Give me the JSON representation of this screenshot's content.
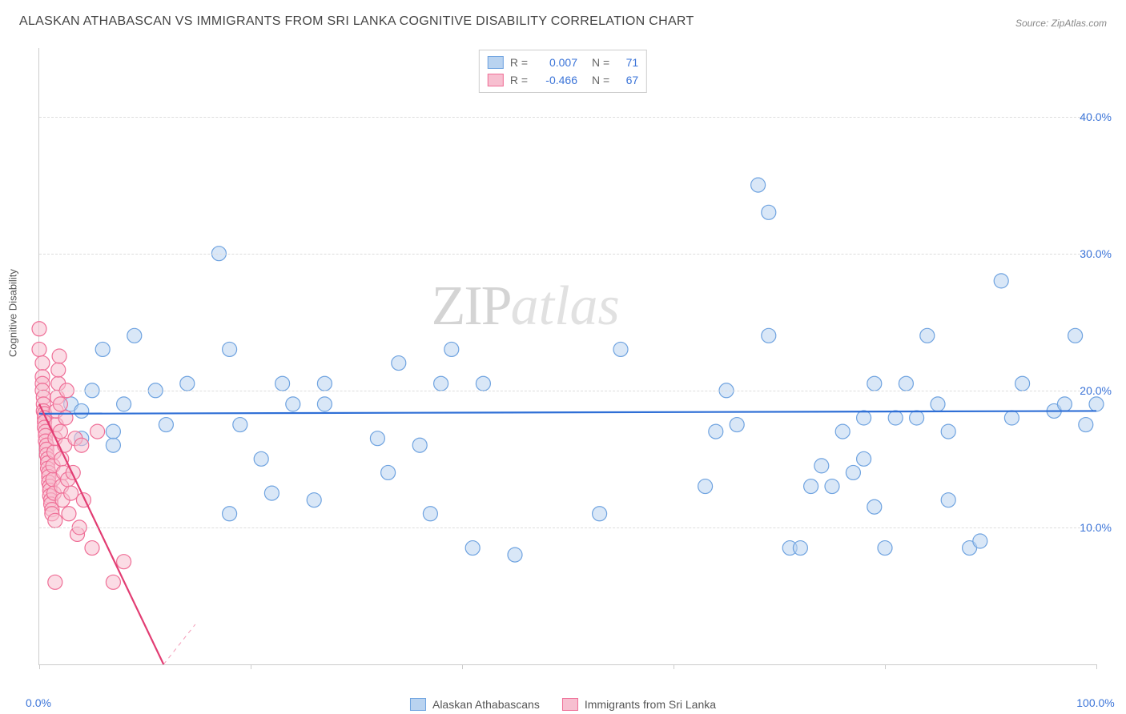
{
  "title": "ALASKAN ATHABASCAN VS IMMIGRANTS FROM SRI LANKA COGNITIVE DISABILITY CORRELATION CHART",
  "source": "Source: ZipAtlas.com",
  "y_axis_label": "Cognitive Disability",
  "watermark": {
    "part1": "ZIP",
    "part2": "atlas"
  },
  "chart": {
    "type": "scatter",
    "xlim": [
      0,
      100
    ],
    "ylim": [
      0,
      45
    ],
    "y_ticks": [
      10,
      20,
      30,
      40
    ],
    "y_tick_labels": [
      "10.0%",
      "20.0%",
      "30.0%",
      "40.0%"
    ],
    "x_ticks": [
      0,
      20,
      40,
      60,
      80,
      100
    ],
    "x_tick_labels_shown": {
      "0": "0.0%",
      "100": "100.0%"
    },
    "background_color": "#ffffff",
    "grid_color": "#dddddd",
    "axis_color": "#cccccc",
    "tick_label_color": "#3b74d8",
    "marker_radius": 9,
    "marker_stroke_width": 1.2,
    "series": [
      {
        "name": "Alaskan Athabascans",
        "fill": "#b9d3f0",
        "stroke": "#6fa3e0",
        "fill_opacity": 0.55,
        "regression": {
          "x1": 0,
          "y1": 18.3,
          "x2": 100,
          "y2": 18.5,
          "color": "#2f6fd6",
          "width": 2.2,
          "dash": "none"
        },
        "points": [
          [
            3,
            19
          ],
          [
            4,
            18.5
          ],
          [
            5,
            20
          ],
          [
            4,
            16.5
          ],
          [
            6,
            23
          ],
          [
            7,
            16
          ],
          [
            7,
            17
          ],
          [
            8,
            19
          ],
          [
            9,
            24
          ],
          [
            11,
            20
          ],
          [
            12,
            17.5
          ],
          [
            14,
            20.5
          ],
          [
            17,
            30
          ],
          [
            18,
            23
          ],
          [
            19,
            17.5
          ],
          [
            18,
            11
          ],
          [
            21,
            15
          ],
          [
            22,
            12.5
          ],
          [
            23,
            20.5
          ],
          [
            24,
            19
          ],
          [
            26,
            12
          ],
          [
            27,
            19
          ],
          [
            27,
            20.5
          ],
          [
            32,
            16.5
          ],
          [
            33,
            14
          ],
          [
            34,
            22
          ],
          [
            36,
            16
          ],
          [
            37,
            11
          ],
          [
            38,
            20.5
          ],
          [
            39,
            23
          ],
          [
            41,
            8.5
          ],
          [
            42,
            20.5
          ],
          [
            45,
            8
          ],
          [
            53,
            11
          ],
          [
            55,
            23
          ],
          [
            63,
            13
          ],
          [
            64,
            17
          ],
          [
            65,
            20
          ],
          [
            66,
            17.5
          ],
          [
            68,
            35
          ],
          [
            69,
            33
          ],
          [
            69,
            24
          ],
          [
            71,
            8.5
          ],
          [
            72,
            8.5
          ],
          [
            73,
            13
          ],
          [
            74,
            14.5
          ],
          [
            75,
            13
          ],
          [
            76,
            17
          ],
          [
            77,
            14
          ],
          [
            78,
            18
          ],
          [
            78,
            15
          ],
          [
            79,
            20.5
          ],
          [
            79,
            11.5
          ],
          [
            80,
            8.5
          ],
          [
            81,
            18
          ],
          [
            82,
            20.5
          ],
          [
            83,
            18
          ],
          [
            84,
            24
          ],
          [
            85,
            19
          ],
          [
            86,
            12
          ],
          [
            86,
            17
          ],
          [
            88,
            8.5
          ],
          [
            89,
            9
          ],
          [
            91,
            28
          ],
          [
            92,
            18
          ],
          [
            93,
            20.5
          ],
          [
            96,
            18.5
          ],
          [
            97,
            19
          ],
          [
            98,
            24
          ],
          [
            99,
            17.5
          ],
          [
            100,
            19
          ]
        ]
      },
      {
        "name": "Immigrants from Sri Lanka",
        "fill": "#f7bfd0",
        "stroke": "#ef6f97",
        "fill_opacity": 0.55,
        "regression": {
          "x1": 0,
          "y1": 19,
          "x2": 13,
          "y2": -2,
          "color": "#e23d73",
          "width": 2.2,
          "dash": "none",
          "dash_extension_to_x": 13
        },
        "points": [
          [
            0,
            24.5
          ],
          [
            0,
            23
          ],
          [
            0.3,
            22
          ],
          [
            0.3,
            21
          ],
          [
            0.3,
            20.5
          ],
          [
            0.3,
            20
          ],
          [
            0.4,
            19.5
          ],
          [
            0.4,
            19
          ],
          [
            0.4,
            18.5
          ],
          [
            0.5,
            18.3
          ],
          [
            0.5,
            18
          ],
          [
            0.5,
            17.7
          ],
          [
            0.5,
            17.3
          ],
          [
            0.6,
            17
          ],
          [
            0.6,
            16.7
          ],
          [
            0.6,
            16.3
          ],
          [
            0.7,
            16
          ],
          [
            0.7,
            15.7
          ],
          [
            0.7,
            15.3
          ],
          [
            0.8,
            15
          ],
          [
            0.8,
            14.7
          ],
          [
            0.8,
            14.3
          ],
          [
            0.9,
            14
          ],
          [
            0.9,
            13.7
          ],
          [
            0.9,
            13.3
          ],
          [
            1,
            13
          ],
          [
            1,
            12.7
          ],
          [
            1,
            12.3
          ],
          [
            1.1,
            12
          ],
          [
            1.1,
            11.7
          ],
          [
            1.2,
            11.3
          ],
          [
            1.2,
            11
          ],
          [
            1.3,
            13.5
          ],
          [
            1.3,
            14.5
          ],
          [
            1.4,
            12.5
          ],
          [
            1.4,
            15.5
          ],
          [
            1.5,
            16.5
          ],
          [
            1.5,
            10.5
          ],
          [
            1.6,
            17.5
          ],
          [
            1.6,
            18.5
          ],
          [
            1.7,
            19.5
          ],
          [
            1.8,
            20.5
          ],
          [
            1.8,
            21.5
          ],
          [
            1.9,
            22.5
          ],
          [
            2,
            19
          ],
          [
            2,
            17
          ],
          [
            2.1,
            15
          ],
          [
            2.1,
            13
          ],
          [
            2.2,
            12
          ],
          [
            2.3,
            14
          ],
          [
            2.4,
            16
          ],
          [
            2.5,
            18
          ],
          [
            2.6,
            20
          ],
          [
            2.7,
            13.5
          ],
          [
            2.8,
            11
          ],
          [
            3,
            12.5
          ],
          [
            3.2,
            14
          ],
          [
            3.4,
            16.5
          ],
          [
            3.6,
            9.5
          ],
          [
            3.8,
            10
          ],
          [
            4,
            16
          ],
          [
            4.2,
            12
          ],
          [
            5,
            8.5
          ],
          [
            5.5,
            17
          ],
          [
            1.5,
            6
          ],
          [
            7,
            6
          ],
          [
            8,
            7.5
          ]
        ]
      }
    ]
  },
  "legend_top": {
    "rows": [
      {
        "swatch_fill": "#b9d3f0",
        "swatch_stroke": "#6fa3e0",
        "r_label": "R =",
        "r_value": "0.007",
        "n_label": "N =",
        "n_value": "71"
      },
      {
        "swatch_fill": "#f7bfd0",
        "swatch_stroke": "#ef6f97",
        "r_label": "R =",
        "r_value": "-0.466",
        "n_label": "N =",
        "n_value": "67"
      }
    ]
  },
  "legend_bottom": {
    "items": [
      {
        "swatch_fill": "#b9d3f0",
        "swatch_stroke": "#6fa3e0",
        "label": "Alaskan Athabascans"
      },
      {
        "swatch_fill": "#f7bfd0",
        "swatch_stroke": "#ef6f97",
        "label": "Immigrants from Sri Lanka"
      }
    ]
  }
}
